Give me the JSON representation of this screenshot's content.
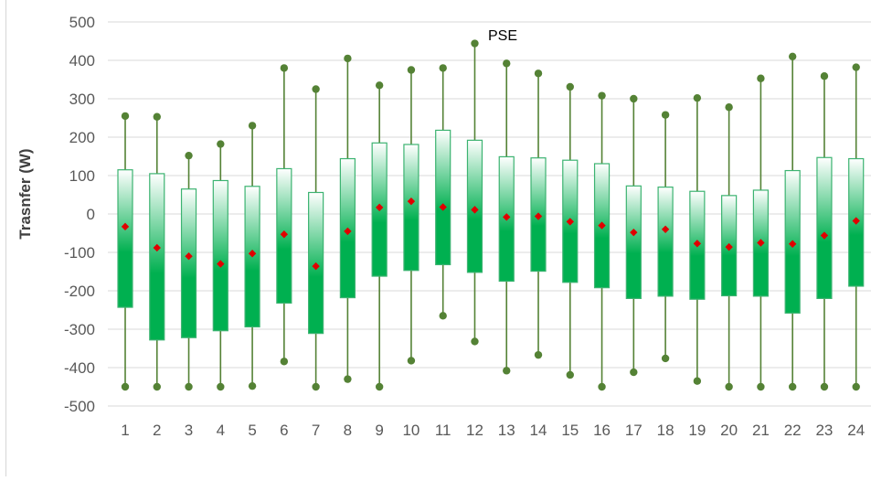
{
  "chart_data": {
    "type": "box",
    "title": "PSE",
    "xlabel": "",
    "ylabel": "Trasnfer (W)",
    "ylim": [
      -500,
      500
    ],
    "yticks": [
      500,
      400,
      300,
      200,
      100,
      0,
      -100,
      -200,
      -300,
      -400,
      -500
    ],
    "grid": true,
    "legend": "none",
    "colors": {
      "box_edge": "#3cb371",
      "box_fill_dark": "#00b050",
      "box_fill_light": "#ffffff",
      "whisker": "#548235",
      "mean_marker": "#e00000",
      "gridline": "#d9d9d9"
    },
    "categories": [
      "1",
      "2",
      "3",
      "4",
      "5",
      "6",
      "7",
      "8",
      "9",
      "10",
      "11",
      "12",
      "13",
      "14",
      "15",
      "16",
      "17",
      "18",
      "19",
      "20",
      "21",
      "22",
      "23",
      "24"
    ],
    "boxes": [
      {
        "min": -450,
        "q1": -243,
        "q3": 115,
        "max": 255,
        "mean": -33
      },
      {
        "min": -450,
        "q1": -328,
        "q3": 105,
        "max": 253,
        "mean": -88
      },
      {
        "min": -450,
        "q1": -322,
        "q3": 65,
        "max": 152,
        "mean": -110
      },
      {
        "min": -450,
        "q1": -304,
        "q3": 87,
        "max": 182,
        "mean": -130
      },
      {
        "min": -448,
        "q1": -294,
        "q3": 72,
        "max": 230,
        "mean": -103
      },
      {
        "min": -384,
        "q1": -232,
        "q3": 118,
        "max": 380,
        "mean": -53
      },
      {
        "min": -450,
        "q1": -311,
        "q3": 56,
        "max": 325,
        "mean": -136
      },
      {
        "min": -430,
        "q1": -218,
        "q3": 144,
        "max": 405,
        "mean": -45
      },
      {
        "min": -450,
        "q1": -162,
        "q3": 185,
        "max": 335,
        "mean": 17
      },
      {
        "min": -382,
        "q1": -147,
        "q3": 181,
        "max": 375,
        "mean": 33
      },
      {
        "min": -265,
        "q1": -132,
        "q3": 218,
        "max": 380,
        "mean": 18
      },
      {
        "min": -332,
        "q1": -152,
        "q3": 192,
        "max": 444,
        "mean": 11
      },
      {
        "min": -408,
        "q1": -175,
        "q3": 149,
        "max": 392,
        "mean": -8
      },
      {
        "min": -367,
        "q1": -149,
        "q3": 146,
        "max": 366,
        "mean": -6
      },
      {
        "min": -419,
        "q1": -178,
        "q3": 140,
        "max": 331,
        "mean": -20
      },
      {
        "min": -450,
        "q1": -192,
        "q3": 131,
        "max": 308,
        "mean": -30
      },
      {
        "min": -412,
        "q1": -220,
        "q3": 73,
        "max": 300,
        "mean": -48
      },
      {
        "min": -376,
        "q1": -214,
        "q3": 70,
        "max": 258,
        "mean": -40
      },
      {
        "min": -435,
        "q1": -222,
        "q3": 59,
        "max": 302,
        "mean": -77
      },
      {
        "min": -450,
        "q1": -213,
        "q3": 48,
        "max": 278,
        "mean": -86
      },
      {
        "min": -450,
        "q1": -214,
        "q3": 62,
        "max": 353,
        "mean": -75
      },
      {
        "min": -450,
        "q1": -258,
        "q3": 113,
        "max": 410,
        "mean": -78
      },
      {
        "min": -450,
        "q1": -220,
        "q3": 147,
        "max": 359,
        "mean": -56
      },
      {
        "min": -450,
        "q1": -188,
        "q3": 144,
        "max": 382,
        "mean": -18
      }
    ]
  }
}
